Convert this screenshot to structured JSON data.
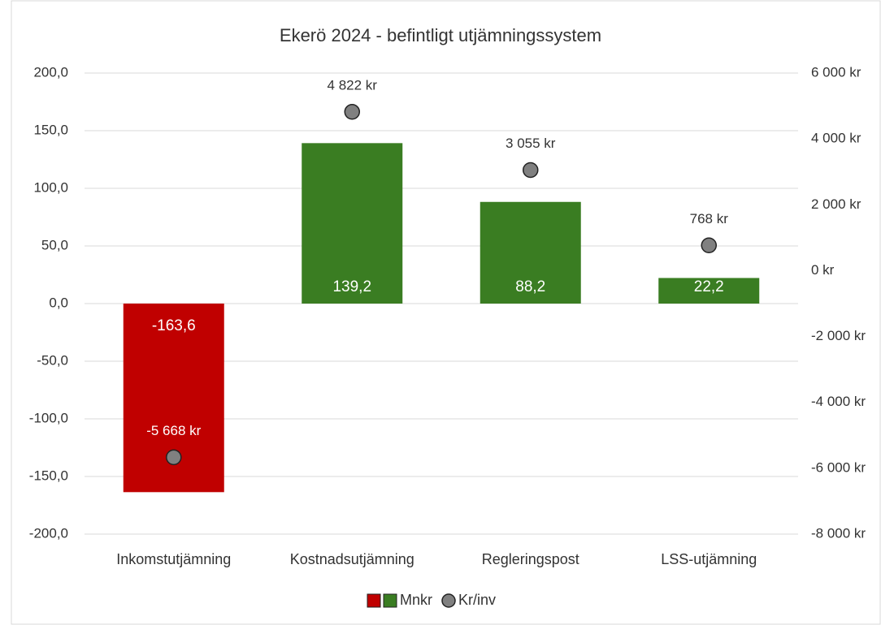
{
  "chart_data": {
    "type": "bar",
    "title": "Ekerö 2024 - befintligt utjämningssystem",
    "categories": [
      "Inkomstutjämning",
      "Kostnadsutjämning",
      "Regleringspost",
      "LSS-utjämning"
    ],
    "series": [
      {
        "name": "Mnkr",
        "type": "bar",
        "colors": [
          "#c00000",
          "#3a7d22",
          "#3a7d22",
          "#3a7d22"
        ],
        "values": [
          -163.6,
          139.2,
          88.2,
          22.2
        ],
        "value_labels": [
          "-163,6",
          "139,2",
          "88,2",
          "22,2"
        ]
      },
      {
        "name": "Kr/inv",
        "type": "scatter",
        "axis": "y2",
        "color": "#808080",
        "values": [
          -5668,
          4822,
          3055,
          768
        ],
        "value_labels": [
          "-5 668 kr",
          "4 822 kr",
          "3 055 kr",
          "768 kr"
        ]
      }
    ],
    "ylim": [
      -200,
      200
    ],
    "yticks": [
      {
        "value": -200,
        "label": "-200,0"
      },
      {
        "value": -150,
        "label": "-150,0"
      },
      {
        "value": -100,
        "label": "-100,0"
      },
      {
        "value": -50,
        "label": "-50,0"
      },
      {
        "value": 0,
        "label": "0,0"
      },
      {
        "value": 50,
        "label": "50,0"
      },
      {
        "value": 100,
        "label": "100,0"
      },
      {
        "value": 150,
        "label": "150,0"
      },
      {
        "value": 200,
        "label": "200,0"
      }
    ],
    "y2lim": [
      -8000,
      6000
    ],
    "y2ticks": [
      {
        "value": -8000,
        "label": "-8 000 kr"
      },
      {
        "value": -6000,
        "label": "-6 000 kr"
      },
      {
        "value": -4000,
        "label": "-4 000 kr"
      },
      {
        "value": -2000,
        "label": "-2 000 kr"
      },
      {
        "value": 0,
        "label": "0 kr"
      },
      {
        "value": 2000,
        "label": "2 000 kr"
      },
      {
        "value": 4000,
        "label": "4 000 kr"
      },
      {
        "value": 6000,
        "label": "6 000 kr"
      }
    ],
    "grid": true,
    "legend": "bottom"
  }
}
